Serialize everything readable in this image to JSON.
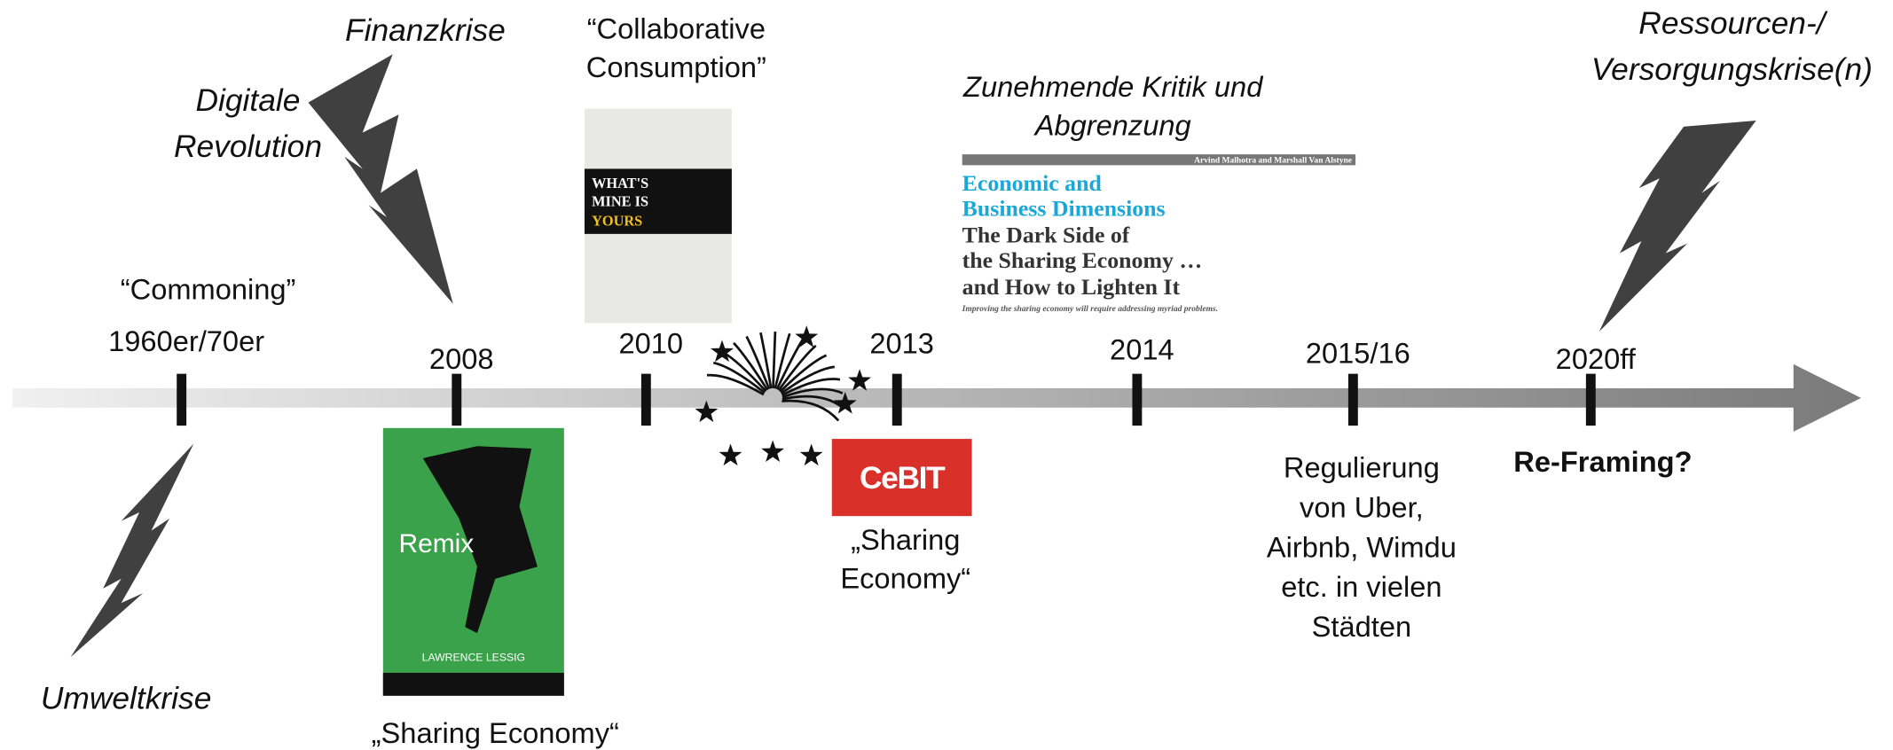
{
  "timeline": {
    "years": [
      "1960er/70er",
      "2008",
      "2010",
      "2013",
      "2014",
      "2015/16",
      "2020ff"
    ],
    "commoning": "“Commoning”",
    "crises": {
      "finanzkrise": "Finanzkrise",
      "digitale_revolution": [
        "Digitale",
        "Revolution"
      ],
      "umweltkrise": "Umweltkrise",
      "ressourcenkrise": [
        "Ressourcen-/",
        "Versorgungskrise(n)"
      ]
    },
    "collaborative_consumption": [
      "“Collaborative",
      "Consumption”"
    ],
    "kritik": [
      "Zunehmende Kritik und",
      "Abgrenzung"
    ],
    "sharing_economy_2008": "„Sharing Economy“",
    "sharing_economy_2013": [
      "„Sharing",
      "Economy“"
    ],
    "regulierung": [
      "Regulierung",
      "von Uber,",
      "Airbnb, Wimdu",
      "etc. in vielen",
      "Städten"
    ],
    "reframing": "Re-Framing?",
    "book_mine": {
      "title": [
        "WHAT'S",
        "MINE IS",
        "YOURS"
      ]
    },
    "book_remix": {
      "title": "Remix",
      "author": "LAWRENCE LESSIG"
    },
    "cebit": "CeBIT",
    "article": {
      "authors": "Arvind Malhotra and Marshall Van Alstyne",
      "section": [
        "Economic and",
        "Business Dimensions"
      ],
      "title": [
        "The Dark Side of",
        "the Sharing Economy …",
        "and How to Lighten It"
      ],
      "subtitle": "Improving the sharing economy will require addressing myriad problems."
    }
  }
}
